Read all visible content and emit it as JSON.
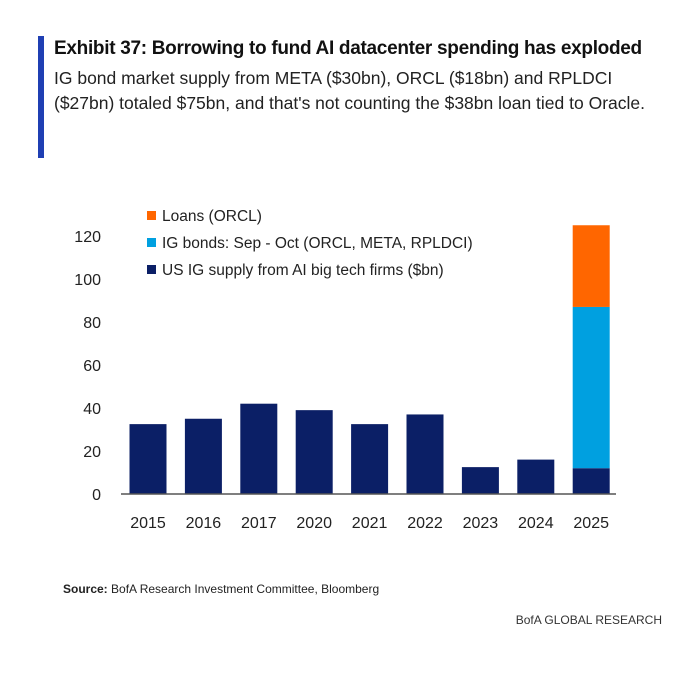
{
  "header": {
    "title": "Exhibit 37: Borrowing to fund AI datacenter spending has exploded",
    "subtitle": "IG bond market supply from META ($30bn), ORCL ($18bn) and RPLDCI ($27bn) totaled $75bn, and that's not counting the $38bn loan tied to Oracle."
  },
  "footer": {
    "source_label": "Source:",
    "source_text": " BofA Research Investment Committee, Bloomberg",
    "brand": "BofA GLOBAL RESEARCH"
  },
  "chart_data": {
    "type": "bar",
    "stacked": true,
    "title": "",
    "xlabel": "",
    "ylabel": "",
    "ylim": [
      0,
      120
    ],
    "yticks": [
      "0",
      "20",
      "40",
      "60",
      "80",
      "100",
      "120"
    ],
    "categories": [
      "2015",
      "2016",
      "2017",
      "2020",
      "2021",
      "2022",
      "2023",
      "2024",
      "2025"
    ],
    "legend_position": "top-left",
    "series": [
      {
        "name": "US IG supply from AI big tech firms ($bn)",
        "color": "#0b1f66",
        "values": [
          32.5,
          35,
          42,
          39,
          32.5,
          37,
          12.5,
          16,
          12
        ]
      },
      {
        "name": "IG bonds: Sep - Oct (ORCL, META, RPLDCI)",
        "color": "#00a0e0",
        "values": [
          0,
          0,
          0,
          0,
          0,
          0,
          0,
          0,
          75
        ]
      },
      {
        "name": "Loans (ORCL)",
        "color": "#ff6600",
        "values": [
          0,
          0,
          0,
          0,
          0,
          0,
          0,
          0,
          38
        ]
      }
    ]
  }
}
